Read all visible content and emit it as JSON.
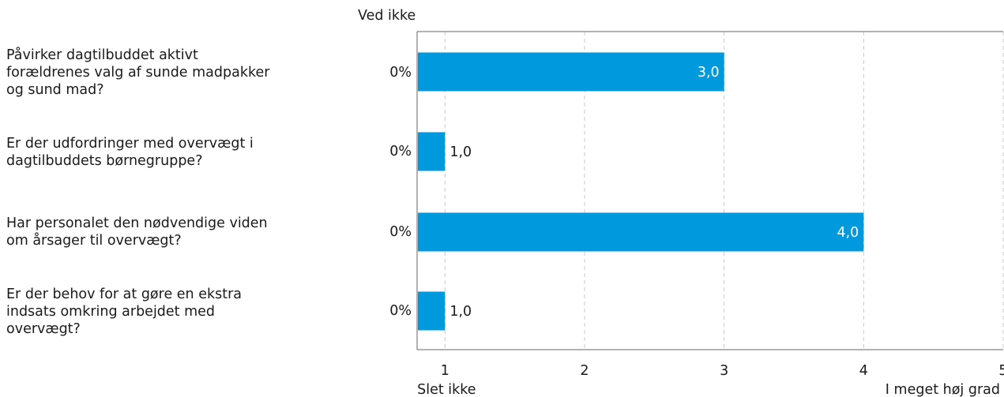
{
  "header_label": "Ved ikke",
  "colors": {
    "bar": "#0099dd",
    "axis": "#666666",
    "grid": "#c8c8c8",
    "text": "#1a1a1a"
  },
  "chart_data": {
    "type": "bar",
    "orientation": "horizontal",
    "categories": [
      "Påvirker dagtilbuddet aktivt\nforældrenes valg af sunde madpakker\nog sund mad?",
      "Er der udfordringer med overvægt i\ndagtilbuddets børnegruppe?",
      "Har personalet den nødvendige viden\nom årsager til overvægt?",
      "Er der behov for at gøre en ekstra\nindsats omkring arbejdet med\novervægt?"
    ],
    "values": [
      3.0,
      1.0,
      4.0,
      1.0
    ],
    "value_labels": [
      "3,0",
      "1,0",
      "4,0",
      "1,0"
    ],
    "ved_ikke": [
      "0%",
      "0%",
      "0%",
      "0%"
    ],
    "xlim": [
      0.8,
      5
    ],
    "xticks": [
      "1",
      "2",
      "3",
      "4",
      "5"
    ],
    "xtick_values": [
      1,
      2,
      3,
      4,
      5
    ],
    "x_start_label": "Slet ikke",
    "x_end_label": "I meget høj grad",
    "grid": true
  }
}
